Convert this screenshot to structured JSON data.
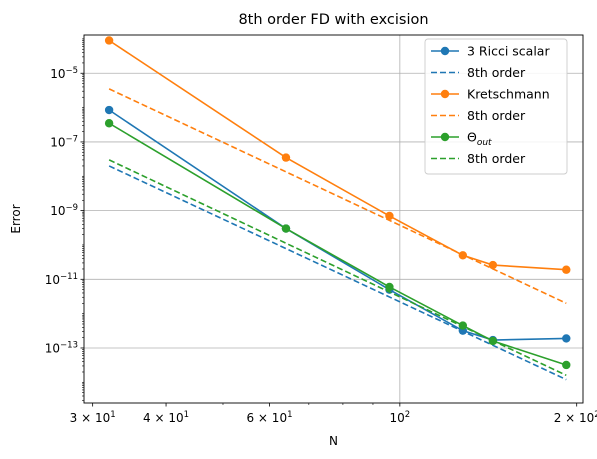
{
  "chart_data": {
    "type": "line",
    "title": "8th order FD with excision",
    "xlabel": "N",
    "ylabel": "Error",
    "x_scale": "log",
    "y_scale": "log",
    "xlim": [
      29,
      205
    ],
    "ylim": [
      2.5e-15,
      0.00013
    ],
    "grid": true,
    "legend_position": "top-right",
    "x_major_ticks": [
      {
        "value": 30,
        "label": "3 × 10",
        "exp": "1"
      },
      {
        "value": 40,
        "label": "4 × 10",
        "exp": "1"
      },
      {
        "value": 60,
        "label": "6 × 10",
        "exp": "1"
      },
      {
        "value": 100,
        "label": "10",
        "exp": "2"
      },
      {
        "value": 200,
        "label": "2 × 10",
        "exp": "2"
      }
    ],
    "x_minor_ticks": [
      50,
      70,
      80,
      90
    ],
    "y_major_ticks": [
      {
        "value": 1e-13,
        "label": "10",
        "exp": "−13"
      },
      {
        "value": 1e-11,
        "label": "10",
        "exp": "−11"
      },
      {
        "value": 1e-09,
        "label": "10",
        "exp": "−9"
      },
      {
        "value": 1e-07,
        "label": "10",
        "exp": "−7"
      },
      {
        "value": 1e-05,
        "label": "10",
        "exp": "−5"
      }
    ],
    "x_grid": [
      100
    ],
    "series": [
      {
        "name": "3 Ricci scalar",
        "style": "solid-marker",
        "color": "#1f77b4",
        "x": [
          32,
          64,
          96,
          128,
          144,
          192
        ],
        "y": [
          8.5e-07,
          3e-10,
          5e-12,
          3.2e-13,
          1.7e-13,
          1.9e-13
        ]
      },
      {
        "name": "8th order",
        "style": "dashed",
        "color": "#1f77b4",
        "x": [
          32,
          192
        ],
        "y": [
          2e-08,
          1.2e-14
        ]
      },
      {
        "name": "Kretschmann",
        "style": "solid-marker",
        "color": "#ff7f0e",
        "x": [
          32,
          64,
          96,
          128,
          144,
          192
        ],
        "y": [
          9e-05,
          3.5e-08,
          7e-10,
          5e-11,
          2.6e-11,
          1.9e-11
        ]
      },
      {
        "name": "8th order",
        "style": "dashed",
        "color": "#ff7f0e",
        "x": [
          32,
          192
        ],
        "y": [
          3.5e-06,
          2e-12
        ]
      },
      {
        "name": "Θ",
        "name_sub": "out",
        "style": "solid-marker",
        "color": "#2ca02c",
        "x": [
          32,
          64,
          96,
          128,
          144,
          192
        ],
        "y": [
          3.5e-07,
          3e-10,
          6e-12,
          4.5e-13,
          1.6e-13,
          3.2e-14
        ]
      },
      {
        "name": "8th order",
        "style": "dashed",
        "color": "#2ca02c",
        "x": [
          32,
          192
        ],
        "y": [
          3e-08,
          1.6e-14
        ]
      }
    ]
  }
}
